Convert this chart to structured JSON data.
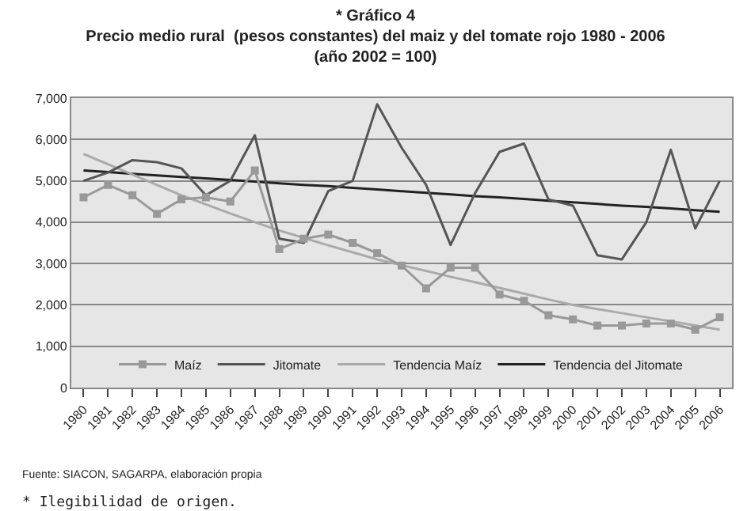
{
  "chart_data": {
    "type": "line",
    "title": "* Gráfico 4",
    "subtitle": "Precio medio rural  (pesos constantes) del maiz y del tomate rojo 1980 - 2006\n(año 2002 = 100)",
    "categories": [
      "1980",
      "1981",
      "1982",
      "1983",
      "1984",
      "1985",
      "1986",
      "1987",
      "1988",
      "1989",
      "1990",
      "1991",
      "1992",
      "1993",
      "1994",
      "1995",
      "1996",
      "1997",
      "1998",
      "1999",
      "2000",
      "2001",
      "2002",
      "2003",
      "2004",
      "2005",
      "2006"
    ],
    "series": [
      {
        "name": "Maíz",
        "color": "#999999",
        "marker": "square",
        "values": [
          4600,
          4900,
          4650,
          4200,
          4550,
          4600,
          4500,
          5250,
          3350,
          3600,
          3700,
          3500,
          3250,
          2950,
          2400,
          2900,
          2900,
          2250,
          2100,
          1750,
          1650,
          1500,
          1500,
          1550,
          1550,
          1400,
          1700
        ]
      },
      {
        "name": "Jitomate",
        "color": "#555555",
        "marker": "none",
        "values": [
          5000,
          5200,
          5500,
          5450,
          5300,
          4650,
          5000,
          6100,
          3600,
          3500,
          4750,
          5000,
          6850,
          5800,
          4900,
          3450,
          4700,
          5700,
          5900,
          4550,
          4400,
          3200,
          3100,
          4000,
          5750,
          3850,
          5000
        ]
      },
      {
        "name": "Tendencia Maíz",
        "color": "#aaaaaa",
        "marker": "none",
        "values": [
          5650,
          5400,
          5150,
          4900,
          4650,
          4430,
          4210,
          4000,
          3800,
          3620,
          3440,
          3270,
          3100,
          2960,
          2820,
          2680,
          2550,
          2410,
          2270,
          2130,
          2000,
          1900,
          1800,
          1700,
          1600,
          1500,
          1400
        ]
      },
      {
        "name": "Tendencia del Jitomate",
        "color": "#222222",
        "marker": "none",
        "values": [
          5250,
          5210,
          5170,
          5130,
          5090,
          5060,
          5020,
          4980,
          4940,
          4900,
          4870,
          4830,
          4790,
          4750,
          4710,
          4670,
          4630,
          4600,
          4560,
          4520,
          4480,
          4440,
          4400,
          4370,
          4330,
          4290,
          4250
        ]
      }
    ],
    "ylim": [
      0,
      7000
    ],
    "yticks": [
      {
        "value": 0,
        "label": "0"
      },
      {
        "value": 1000,
        "label": "1,000"
      },
      {
        "value": 2000,
        "label": "2,000"
      },
      {
        "value": 3000,
        "label": "3,000"
      },
      {
        "value": 4000,
        "label": "4,000"
      },
      {
        "value": 5000,
        "label": "5,000"
      },
      {
        "value": 6000,
        "label": "6,000"
      },
      {
        "value": 7000,
        "label": "7,000"
      }
    ],
    "grid": "y",
    "legend": "bottom",
    "annotations": [
      "Fuente: SIACON, SAGARPA, elaboración propia",
      "* Ilegibilidad de origen."
    ]
  }
}
